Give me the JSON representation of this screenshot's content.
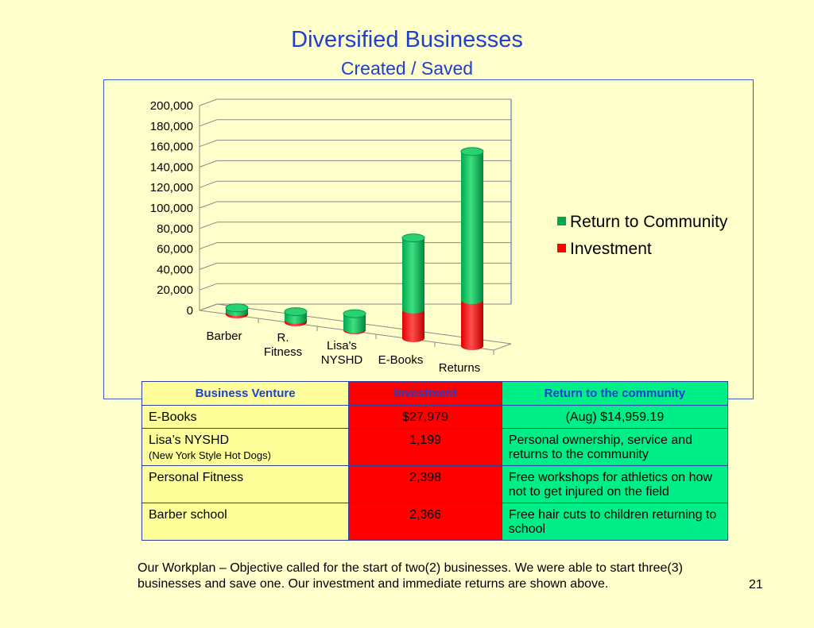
{
  "header": {
    "title": "Diversified Businesses",
    "subtitle": "Created / Saved"
  },
  "chart_data": {
    "type": "bar",
    "stacked": true,
    "three_d": true,
    "categories": [
      "Barber",
      "R. Fitness",
      "Lisa's NYSHD",
      "E-Books",
      "Returns"
    ],
    "category_lines": [
      [
        "Barber"
      ],
      [
        "R.",
        "Fitness"
      ],
      [
        "Lisa's",
        "NYSHD"
      ],
      [
        "E-Books"
      ],
      [
        "Returns"
      ]
    ],
    "series": [
      {
        "name": "Investment",
        "values": [
          2366,
          2398,
          1199,
          27979,
          45000
        ],
        "color": "#ff0000"
      },
      {
        "name": "Return to Community",
        "values": [
          4000,
          8000,
          15000,
          70000,
          145000
        ],
        "color": "#00a650"
      }
    ],
    "legend_order": [
      "Return to Community",
      "Investment"
    ],
    "legend_position": "right",
    "ylim": [
      0,
      200000
    ],
    "yticks": [
      "0",
      "20,000",
      "40,000",
      "60,000",
      "80,000",
      "100,000",
      "120,000",
      "140,000",
      "160,000",
      "180,000",
      "200,000"
    ],
    "grid": true,
    "title": "",
    "xlabel": "",
    "ylabel": ""
  },
  "table": {
    "headers": [
      "Business Venture",
      "Investment",
      "Return to the community"
    ],
    "rows": [
      {
        "venture": "E-Books",
        "note": "",
        "investment": "$27,979",
        "return": "(Aug) $14,959.19"
      },
      {
        "venture": "Lisa’s NYSHD",
        "note": "(New York Style Hot Dogs)",
        "investment": "1,199",
        "return": "Personal ownership, service and returns to the community"
      },
      {
        "venture": "Personal Fitness",
        "note": "",
        "investment": "2,398",
        "return": "Free workshops for athletics on how not to get injured on the field"
      },
      {
        "venture": "Barber school",
        "note": "",
        "investment": "2,366",
        "return": "Free hair cuts to children returning to school"
      }
    ]
  },
  "footer": {
    "text": "Our Workplan – Objective called for the start of two(2) businesses. We were able to start three(3) businesses and save one.  Our investment and immediate returns are shown above.",
    "page_number": "21"
  }
}
